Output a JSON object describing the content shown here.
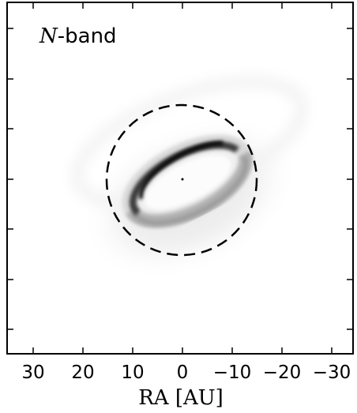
{
  "panel": {
    "band_letter": "N",
    "band_suffix": "-band"
  },
  "x_axis": {
    "label": "RA [AU]",
    "tick_labels": [
      "30",
      "20",
      "10",
      "0",
      "−10",
      "−20",
      "−30"
    ]
  },
  "image": {
    "colormap": "grayscale",
    "dashed_circle": true
  }
}
